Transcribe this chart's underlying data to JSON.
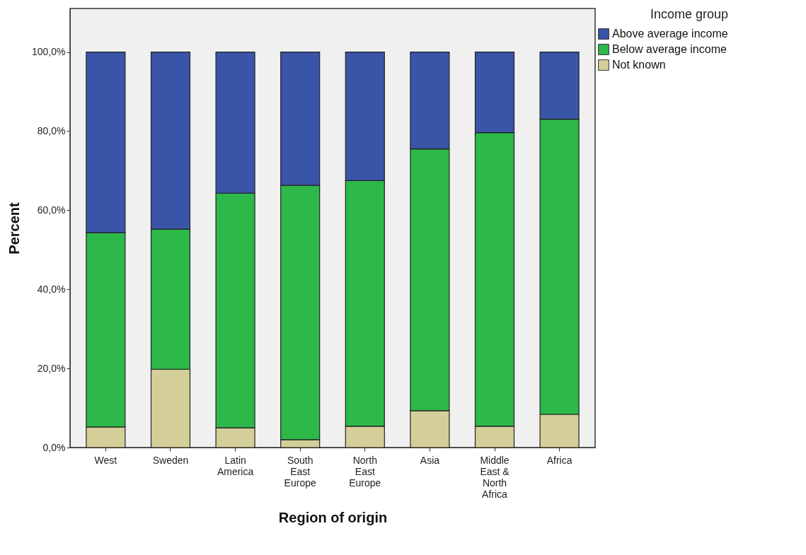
{
  "chart_data": {
    "type": "bar",
    "stacked": true,
    "xlabel": "Region of origin",
    "ylabel": "Percent",
    "legend_title": "Income group",
    "legend": "top right",
    "grid": false,
    "categories": [
      "West",
      "Sweden",
      "Latin America",
      "South East Europe",
      "North East Europe",
      "Asia",
      "Middle East & North Africa",
      "Africa"
    ],
    "ylim": [
      0,
      111
    ],
    "yticks": [
      {
        "value": 0,
        "label": "0,0%"
      },
      {
        "value": 20,
        "label": "20,0%"
      },
      {
        "value": 40,
        "label": "40,0%"
      },
      {
        "value": 60,
        "label": "60,0%"
      },
      {
        "value": 80,
        "label": "80,0%"
      },
      {
        "value": 100,
        "label": "100,0%"
      }
    ],
    "series": [
      {
        "name": "Not known",
        "color": "#d4cf98",
        "values": [
          5.2,
          19.8,
          5.0,
          2.0,
          5.4,
          9.3,
          5.4,
          8.4
        ]
      },
      {
        "name": "Below average income",
        "color": "#2db84a",
        "values": [
          49.1,
          35.4,
          59.3,
          64.3,
          62.1,
          66.2,
          74.2,
          74.6
        ]
      },
      {
        "name": "Above average income",
        "color": "#3a55a8",
        "values": [
          45.7,
          44.8,
          35.7,
          33.7,
          32.5,
          24.5,
          20.4,
          17.0
        ]
      }
    ]
  }
}
